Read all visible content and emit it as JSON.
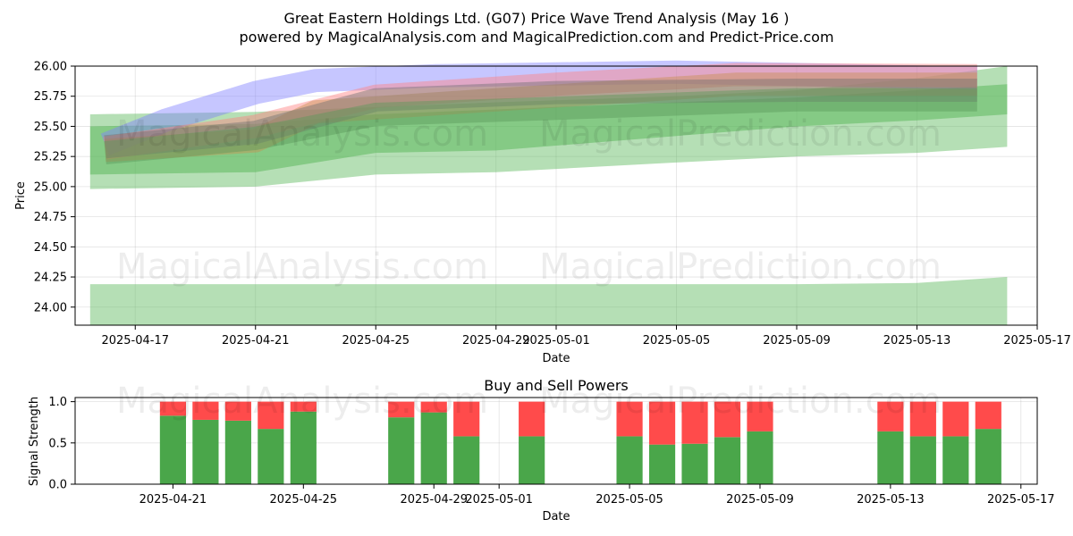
{
  "title_line1": "Great Eastern Holdings Ltd. (G07) Price Wave Trend Analysis (May 16 )",
  "title_line2": "powered by MagicalAnalysis.com and MagicalPrediction.com and Predict-Price.com",
  "watermarks": [
    "MagicalAnalysis.com",
    "MagicalPrediction.com"
  ],
  "colors": {
    "green": "#4aa64a",
    "red": "#ff4b4b",
    "band_green": "#5cb85c"
  },
  "chart_data": [
    {
      "type": "area",
      "title": "",
      "xlabel": "Date",
      "ylabel": "Price",
      "xlim": [
        "2025-04-15",
        "2025-05-17"
      ],
      "ylim": [
        23.85,
        26.0
      ],
      "x_ticks": [
        "2025-04-17",
        "2025-04-21",
        "2025-04-25",
        "2025-04-29",
        "2025-05-01",
        "2025-05-05",
        "2025-05-09",
        "2025-05-13",
        "2025-05-17"
      ],
      "y_ticks": [
        "24.00",
        "24.25",
        "24.50",
        "24.75",
        "25.00",
        "25.25",
        "25.50",
        "25.75",
        "26.00"
      ],
      "grid": true,
      "bands": [
        {
          "x": [
            "2025-04-15.5",
            "2025-04-21",
            "2025-04-25",
            "2025-04-29",
            "2025-05-05",
            "2025-05-09",
            "2025-05-13",
            "2025-05-16"
          ],
          "lower": [
            24.98,
            25.0,
            25.1,
            25.12,
            25.2,
            25.25,
            25.28,
            25.33
          ],
          "upper": [
            25.6,
            25.62,
            25.66,
            25.7,
            25.75,
            25.8,
            25.9,
            26.0
          ]
        },
        {
          "x": [
            "2025-04-15.5",
            "2025-04-21",
            "2025-04-25",
            "2025-04-29",
            "2025-05-05",
            "2025-05-09",
            "2025-05-13",
            "2025-05-16"
          ],
          "lower": [
            25.1,
            25.12,
            25.28,
            25.3,
            25.42,
            25.5,
            25.55,
            25.6
          ],
          "upper": [
            25.5,
            25.52,
            25.6,
            25.64,
            25.7,
            25.74,
            25.8,
            25.85
          ]
        },
        {
          "x": [
            "2025-04-15.5",
            "2025-04-21",
            "2025-04-29",
            "2025-05-05",
            "2025-05-09",
            "2025-05-13",
            "2025-05-16"
          ],
          "lower": [
            23.85,
            23.85,
            23.85,
            23.85,
            23.85,
            23.85,
            23.85
          ],
          "upper": [
            24.19,
            24.19,
            24.19,
            24.19,
            24.19,
            24.2,
            24.25
          ]
        }
      ],
      "waves": [
        {
          "color": "#8080ff",
          "x": [
            "2025-04-16",
            "2025-04-18",
            "2025-04-21",
            "2025-04-23",
            "2025-04-27",
            "2025-05-05",
            "2025-05-15"
          ],
          "y": [
            25.35,
            25.55,
            25.78,
            25.88,
            25.92,
            25.95,
            25.9
          ]
        },
        {
          "color": "#ff8080",
          "x": [
            "2025-04-16",
            "2025-04-21",
            "2025-04-25",
            "2025-05-01",
            "2025-05-07",
            "2025-05-15"
          ],
          "y": [
            25.32,
            25.5,
            25.75,
            25.85,
            25.93,
            25.92
          ]
        },
        {
          "color": "#c89050",
          "x": [
            "2025-04-16",
            "2025-04-21",
            "2025-04-23",
            "2025-04-29",
            "2025-05-07",
            "2025-05-15"
          ],
          "y": [
            25.3,
            25.38,
            25.62,
            25.72,
            25.85,
            25.85
          ]
        },
        {
          "color": "#707070",
          "x": [
            "2025-04-16",
            "2025-04-21",
            "2025-04-25",
            "2025-05-01",
            "2025-05-09",
            "2025-05-15"
          ],
          "y": [
            25.33,
            25.45,
            25.72,
            25.78,
            25.8,
            25.8
          ]
        },
        {
          "color": "#5a9a5a",
          "x": [
            "2025-04-16",
            "2025-04-21",
            "2025-04-25",
            "2025-05-01",
            "2025-05-09",
            "2025-05-15"
          ],
          "y": [
            25.28,
            25.4,
            25.6,
            25.65,
            25.72,
            25.72
          ]
        }
      ]
    },
    {
      "type": "bar",
      "title": "Buy and Sell Powers",
      "xlabel": "Date",
      "ylabel": "Signal Strength",
      "xlim": [
        "2025-04-18",
        "2025-05-17.5"
      ],
      "ylim": [
        0,
        1.05
      ],
      "x_ticks": [
        "2025-04-21",
        "2025-04-25",
        "2025-04-29",
        "2025-05-01",
        "2025-05-05",
        "2025-05-09",
        "2025-05-13",
        "2025-05-17"
      ],
      "y_ticks": [
        "0.0",
        "0.5",
        "1.0"
      ],
      "grid": true,
      "series": [
        {
          "name": "",
          "color": "#4aa64a",
          "x": [
            "2025-04-21",
            "2025-04-22",
            "2025-04-23",
            "2025-04-24",
            "2025-04-25",
            "2025-04-28",
            "2025-04-29",
            "2025-04-30",
            "2025-05-02",
            "2025-05-05",
            "2025-05-06",
            "2025-05-07",
            "2025-05-08",
            "2025-05-09",
            "2025-05-13",
            "2025-05-14",
            "2025-05-15",
            "2025-05-16"
          ],
          "values": [
            0.83,
            0.78,
            0.77,
            0.67,
            0.88,
            0.81,
            0.87,
            0.58,
            0.58,
            0.58,
            0.48,
            0.49,
            0.57,
            0.64,
            0.64,
            0.58,
            0.58,
            0.67
          ]
        },
        {
          "name": "",
          "color": "#ff4b4b",
          "x": [
            "2025-04-21",
            "2025-04-22",
            "2025-04-23",
            "2025-04-24",
            "2025-04-25",
            "2025-04-28",
            "2025-04-29",
            "2025-04-30",
            "2025-05-02",
            "2025-05-05",
            "2025-05-06",
            "2025-05-07",
            "2025-05-08",
            "2025-05-09",
            "2025-05-13",
            "2025-05-14",
            "2025-05-15",
            "2025-05-16"
          ],
          "values": [
            0.17,
            0.22,
            0.23,
            0.33,
            0.12,
            0.19,
            0.13,
            0.42,
            0.42,
            0.42,
            0.52,
            0.51,
            0.43,
            0.36,
            0.36,
            0.42,
            0.42,
            0.33
          ]
        }
      ]
    }
  ]
}
